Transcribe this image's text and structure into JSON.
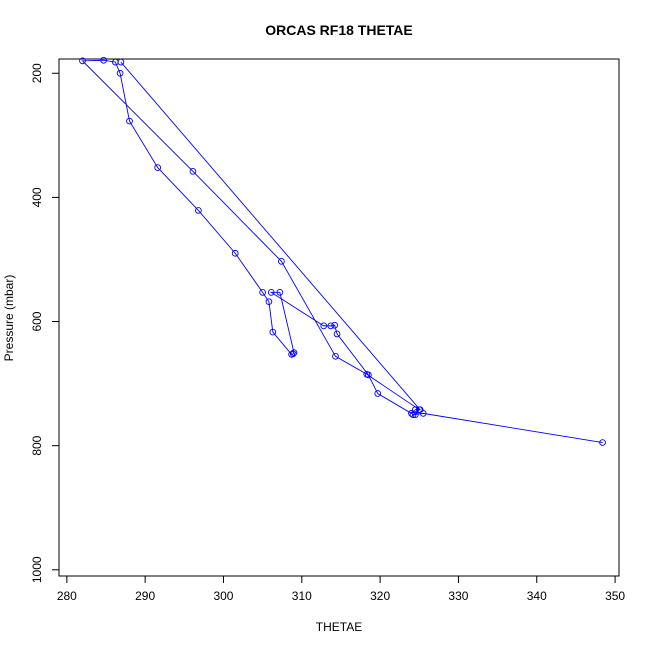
{
  "chart_data": {
    "type": "line",
    "title": "ORCAS RF18 THETAE",
    "xlabel": "THETAE",
    "ylabel": "Pressure (mbar)",
    "xlim": [
      279.0,
      350.5
    ],
    "ylim": [
      1010.0,
      177.0
    ],
    "y_reversed": true,
    "x_ticks": [
      280,
      290,
      300,
      310,
      320,
      330,
      340,
      350
    ],
    "y_ticks": [
      200,
      400,
      600,
      800,
      1000
    ],
    "grid": false,
    "series_color": "#0000ff",
    "marker": "open-circle",
    "series": [
      {
        "points": [
          [
            348.4,
            795
          ],
          [
            325.5,
            748
          ],
          [
            324.2,
            750
          ],
          [
            324.5,
            750
          ],
          [
            325.0,
            742
          ],
          [
            318.3,
            685
          ],
          [
            314.3,
            656
          ],
          [
            307.4,
            503
          ],
          [
            296.1,
            358
          ],
          [
            282.0,
            180
          ],
          [
            284.7,
            179
          ],
          [
            286.2,
            182
          ],
          [
            286.8,
            200
          ],
          [
            288.0,
            277
          ],
          [
            291.6,
            352
          ],
          [
            296.8,
            421
          ],
          [
            301.5,
            490
          ],
          [
            305.0,
            553
          ],
          [
            305.8,
            568
          ],
          [
            306.3,
            617
          ],
          [
            308.7,
            653
          ],
          [
            308.9,
            652
          ],
          [
            309.0,
            650
          ],
          [
            307.2,
            553
          ],
          [
            306.1,
            553
          ],
          [
            312.8,
            607
          ],
          [
            313.7,
            607
          ],
          [
            314.2,
            606
          ],
          [
            314.5,
            620
          ],
          [
            318.5,
            686
          ],
          [
            319.7,
            716
          ],
          [
            324.0,
            748
          ],
          [
            324.5,
            742
          ],
          [
            325.1,
            742
          ],
          [
            286.9,
            182
          ]
        ]
      }
    ]
  }
}
